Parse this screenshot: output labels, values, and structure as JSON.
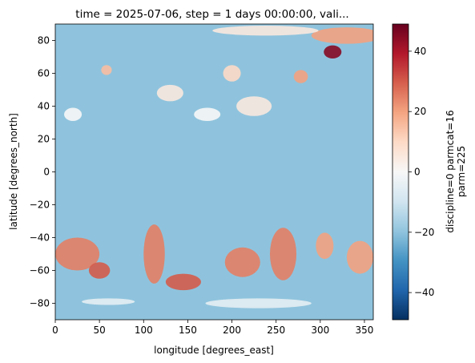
{
  "chart_data": {
    "type": "heatmap",
    "title": "time = 2025-07-06, step = 1 days 00:00:00, vali...",
    "xlabel": "longitude [degrees_east]",
    "ylabel": "latitude [degrees_north]",
    "xlim": [
      0,
      360
    ],
    "ylim": [
      -90,
      90
    ],
    "x_ticks": [
      0,
      50,
      100,
      150,
      200,
      250,
      300,
      350
    ],
    "y_ticks": [
      -80,
      -60,
      -40,
      -20,
      0,
      20,
      40,
      60,
      80
    ],
    "colorbar": {
      "label_line1": "discipline=0 parmcat=16",
      "label_line2": "parm=225",
      "range": [
        -49,
        49
      ],
      "ticks": [
        -40,
        -20,
        0,
        20,
        40
      ],
      "colormap": "RdBu_r"
    },
    "background_value": -20,
    "features": [
      {
        "lon": 330,
        "lat": 83,
        "rlon": 40,
        "rlat": 5,
        "value": 20
      },
      {
        "lon": 314,
        "lat": 73,
        "rlon": 10,
        "rlat": 4,
        "value": 45
      },
      {
        "lon": 238,
        "lat": 86,
        "rlon": 60,
        "rlat": 3,
        "value": 5
      },
      {
        "lon": 25,
        "lat": -50,
        "rlon": 25,
        "rlat": 10,
        "value": 25
      },
      {
        "lon": 50,
        "lat": -60,
        "rlon": 12,
        "rlat": 5,
        "value": 30
      },
      {
        "lon": 112,
        "lat": -50,
        "rlon": 12,
        "rlat": 18,
        "value": 25
      },
      {
        "lon": 145,
        "lat": -67,
        "rlon": 20,
        "rlat": 5,
        "value": 30
      },
      {
        "lon": 212,
        "lat": -55,
        "rlon": 20,
        "rlat": 9,
        "value": 25
      },
      {
        "lon": 258,
        "lat": -50,
        "rlon": 15,
        "rlat": 16,
        "value": 25
      },
      {
        "lon": 305,
        "lat": -45,
        "rlon": 10,
        "rlat": 8,
        "value": 20
      },
      {
        "lon": 345,
        "lat": -52,
        "rlon": 15,
        "rlat": 10,
        "value": 20
      },
      {
        "lon": 230,
        "lat": -80,
        "rlon": 60,
        "rlat": 3,
        "value": -5
      },
      {
        "lon": 60,
        "lat": -79,
        "rlon": 30,
        "rlat": 2,
        "value": -5
      },
      {
        "lon": 200,
        "lat": 60,
        "rlon": 10,
        "rlat": 5,
        "value": 10
      },
      {
        "lon": 130,
        "lat": 48,
        "rlon": 15,
        "rlat": 5,
        "value": 5
      },
      {
        "lon": 58,
        "lat": 62,
        "rlon": 6,
        "rlat": 3,
        "value": 15
      },
      {
        "lon": 278,
        "lat": 58,
        "rlon": 8,
        "rlat": 4,
        "value": 20
      },
      {
        "lon": 20,
        "lat": 35,
        "rlon": 10,
        "rlat": 4,
        "value": 0
      },
      {
        "lon": 172,
        "lat": 35,
        "rlon": 15,
        "rlat": 4,
        "value": 0
      },
      {
        "lon": 225,
        "lat": 40,
        "rlon": 20,
        "rlat": 6,
        "value": 5
      }
    ]
  }
}
